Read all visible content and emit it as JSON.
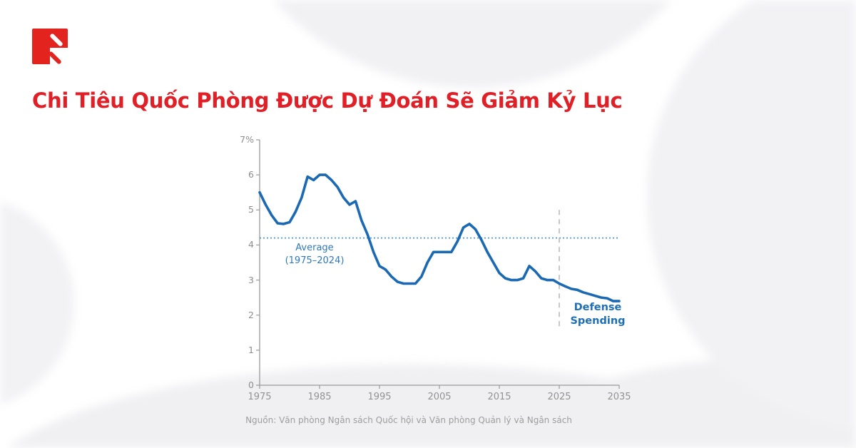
{
  "page": {
    "title": "Chi Tiêu Quốc Phòng Được Dự Đoán Sẽ Giảm Kỷ Lục",
    "source": "Nguồn: Văn phòng Ngân sách Quốc hội và Văn phòng Quản lý và Ngân sách"
  },
  "logo": {
    "description": "red square mark with two diagonal slashes"
  },
  "colors": {
    "title_red": "#e01f26",
    "logo_red": "#e2231e",
    "line_blue": "#1a69b2",
    "average_dotted_blue": "#4f97d7",
    "average_label_blue": "#2e79be",
    "defense_label_blue": "#1e6fb8",
    "axis_gray": "#9a9a9a",
    "tick_text_gray": "#8d8d8d",
    "divider_gray": "#b5b5b5",
    "source_gray": "#9d9d9d"
  },
  "chart_data": {
    "type": "line",
    "title": "",
    "xlabel": "",
    "ylabel": "",
    "y_unit": "%",
    "ylim": [
      0,
      7
    ],
    "xlim": [
      1975,
      2035
    ],
    "grid": false,
    "legend_position": "inline-annotation",
    "y_ticks": [
      "7%",
      "6",
      "5",
      "4",
      "3",
      "2",
      "1",
      "0"
    ],
    "x_ticks": [
      "1975",
      "1985",
      "1995",
      "2005",
      "2015",
      "2025",
      "2035"
    ],
    "average_line": {
      "value": 4.2,
      "label": "Average",
      "sublabel": "(1975–2024)"
    },
    "projection_divider_year": 2025,
    "series_label": {
      "line1": "Defense",
      "line2": "Spending"
    },
    "series": [
      {
        "name": "Defense Spending",
        "x": [
          1975,
          1976,
          1977,
          1978,
          1979,
          1980,
          1981,
          1982,
          1983,
          1984,
          1985,
          1986,
          1987,
          1988,
          1989,
          1990,
          1991,
          1992,
          1993,
          1994,
          1995,
          1996,
          1997,
          1998,
          1999,
          2000,
          2001,
          2002,
          2003,
          2004,
          2005,
          2006,
          2007,
          2008,
          2009,
          2010,
          2011,
          2012,
          2013,
          2014,
          2015,
          2016,
          2017,
          2018,
          2019,
          2020,
          2021,
          2022,
          2023,
          2024,
          2025,
          2026,
          2027,
          2028,
          2029,
          2030,
          2031,
          2032,
          2033,
          2034,
          2035
        ],
        "values": [
          5.5,
          5.15,
          4.85,
          4.62,
          4.6,
          4.65,
          4.95,
          5.35,
          5.95,
          5.85,
          6.0,
          6.0,
          5.85,
          5.65,
          5.35,
          5.15,
          5.25,
          4.7,
          4.3,
          3.8,
          3.4,
          3.3,
          3.1,
          2.95,
          2.9,
          2.9,
          2.9,
          3.1,
          3.5,
          3.8,
          3.8,
          3.8,
          3.8,
          4.1,
          4.5,
          4.6,
          4.45,
          4.15,
          3.8,
          3.5,
          3.2,
          3.05,
          3.0,
          3.0,
          3.05,
          3.4,
          3.25,
          3.05,
          3.0,
          3.0,
          2.9,
          2.82,
          2.75,
          2.72,
          2.65,
          2.6,
          2.55,
          2.5,
          2.48,
          2.4,
          2.4
        ]
      }
    ]
  }
}
